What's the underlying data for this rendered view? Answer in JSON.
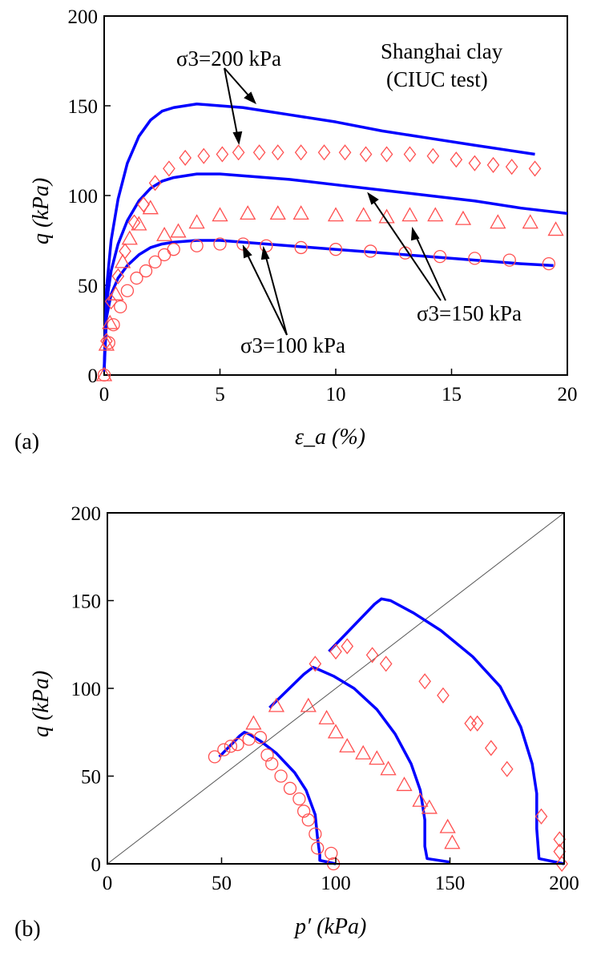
{
  "chart_data": [
    {
      "type": "line",
      "panel_label": "(a)",
      "xlabel": "ε_a (%)",
      "ylabel": "q (kPa)",
      "xlim": [
        0,
        20
      ],
      "ylim": [
        0,
        200
      ],
      "xticks": [
        "0",
        "5",
        "10",
        "15",
        "20"
      ],
      "yticks": [
        "0",
        "50",
        "100",
        "150",
        "200"
      ],
      "grid": false,
      "title_lines": [
        "Shanghai clay",
        "(CIUC test)"
      ],
      "annotations": [
        "σ3=200 kPa",
        "σ3=150 kPa",
        "σ3=100 kPa"
      ],
      "series": [
        {
          "name": "σ3=100 kPa",
          "kind": "simulation",
          "color": "#0000ff",
          "x": [
            0.0,
            0.1,
            0.3,
            0.6,
            1.0,
            1.5,
            2.0,
            2.5,
            3.0,
            4.0,
            5.0,
            6.0,
            8.0,
            10.0,
            12.0,
            14.0,
            16.0,
            18.0,
            19.4
          ],
          "y": [
            2,
            32,
            45,
            54,
            61,
            67,
            71,
            73,
            74,
            75,
            75,
            74,
            72,
            70,
            68,
            66,
            64,
            62,
            61
          ]
        },
        {
          "name": "σ3=150 kPa",
          "kind": "simulation",
          "color": "#0000ff",
          "x": [
            0.0,
            0.1,
            0.3,
            0.6,
            1.0,
            1.5,
            2.0,
            2.5,
            3.0,
            3.5,
            4.0,
            5.0,
            6.0,
            8.0,
            10.0,
            12.0,
            14.0,
            16.0,
            18.0,
            20.0
          ],
          "y": [
            3,
            40,
            58,
            73,
            86,
            97,
            104,
            108,
            110,
            111,
            112,
            112,
            111,
            109,
            106,
            103,
            100,
            97,
            93,
            90
          ]
        },
        {
          "name": "σ3=200 kPa",
          "kind": "simulation",
          "color": "#0000ff",
          "x": [
            0.0,
            0.1,
            0.3,
            0.6,
            1.0,
            1.5,
            2.0,
            2.5,
            3.0,
            3.5,
            4.0,
            5.0,
            6.0,
            7.0,
            8.0,
            10.0,
            12.0,
            14.0,
            16.0,
            18.6
          ],
          "y": [
            4,
            48,
            75,
            98,
            118,
            133,
            142,
            147,
            149,
            150,
            151,
            150,
            149,
            147,
            145,
            141,
            136,
            132,
            128,
            123
          ]
        },
        {
          "name": "σ3=100 kPa",
          "kind": "experiment",
          "marker": "circle",
          "color": "#ff5050",
          "x": [
            0.0,
            0.2,
            0.4,
            0.7,
            1.0,
            1.4,
            1.8,
            2.2,
            2.6,
            3.0,
            4.0,
            5.0,
            6.0,
            7.0,
            8.5,
            10.0,
            11.5,
            13.0,
            14.5,
            16.0,
            17.5,
            19.2
          ],
          "y": [
            0,
            18,
            28,
            38,
            47,
            54,
            58,
            63,
            67,
            70,
            72,
            73,
            73,
            72,
            71,
            70,
            69,
            68,
            66,
            65,
            64,
            62
          ]
        },
        {
          "name": "σ3=150 kPa",
          "kind": "experiment",
          "marker": "triangle",
          "color": "#ff5050",
          "x": [
            0.0,
            0.1,
            0.25,
            0.5,
            0.8,
            1.1,
            1.5,
            2.0,
            2.6,
            3.2,
            4.0,
            5.0,
            6.2,
            7.5,
            8.5,
            10.0,
            11.2,
            12.2,
            13.2,
            14.3,
            15.5,
            17.0,
            18.4,
            19.5
          ],
          "y": [
            0,
            17,
            29,
            45,
            63,
            76,
            84,
            93,
            78,
            80,
            85,
            89,
            90,
            90,
            90,
            89,
            89,
            88,
            89,
            89,
            87,
            85,
            85,
            81
          ]
        },
        {
          "name": "σ3=200 kPa",
          "kind": "experiment",
          "marker": "diamond",
          "color": "#ff5050",
          "x": [
            0.1,
            0.3,
            0.6,
            0.9,
            1.3,
            1.7,
            2.2,
            2.8,
            3.5,
            4.3,
            5.1,
            5.8,
            6.7,
            7.5,
            8.5,
            9.5,
            10.4,
            11.3,
            12.2,
            13.2,
            14.2,
            15.2,
            16.0,
            16.8,
            17.6,
            18.6
          ],
          "y": [
            19,
            41,
            55,
            69,
            85,
            95,
            107,
            115,
            121,
            122,
            123,
            124,
            124,
            124,
            124,
            124,
            124,
            123,
            123,
            123,
            122,
            120,
            118,
            117,
            116,
            115
          ]
        }
      ]
    },
    {
      "type": "line",
      "panel_label": "(b)",
      "xlabel": "p′ (kPa)",
      "ylabel": "q (kPa)",
      "xlim": [
        0,
        200
      ],
      "ylim": [
        0,
        200
      ],
      "xticks": [
        "0",
        "50",
        "100",
        "150",
        "200"
      ],
      "yticks": [
        "0",
        "50",
        "100",
        "150",
        "200"
      ],
      "grid": false,
      "reference_line": {
        "x": [
          0,
          200
        ],
        "y": [
          0,
          200
        ],
        "color": "#555555"
      },
      "series": [
        {
          "name": "σ3=100 kPa",
          "kind": "simulation",
          "color": "#0000ff",
          "x": [
            49,
            58,
            60,
            62,
            67,
            74,
            82,
            87,
            91,
            92,
            93,
            93,
            100
          ],
          "y": [
            61,
            73,
            75,
            74,
            70,
            63,
            52,
            42,
            28,
            15,
            5,
            2,
            0
          ]
        },
        {
          "name": "σ3=150 kPa",
          "kind": "simulation",
          "color": "#0000ff",
          "x": [
            71,
            86,
            90,
            92,
            99,
            108,
            118,
            126,
            133,
            137,
            139,
            139,
            140,
            150
          ],
          "y": [
            89,
            108,
            112,
            111,
            107,
            100,
            88,
            74,
            57,
            42,
            25,
            10,
            3,
            1
          ]
        },
        {
          "name": "σ3=200 kPa",
          "kind": "simulation",
          "color": "#0000ff",
          "x": [
            97,
            117,
            120,
            124,
            134,
            146,
            160,
            172,
            181,
            186,
            188,
            188,
            189,
            200
          ],
          "y": [
            121,
            148,
            151,
            150,
            143,
            133,
            118,
            101,
            78,
            57,
            40,
            20,
            3,
            0
          ]
        },
        {
          "name": "σ3=100 kPa",
          "kind": "experiment",
          "marker": "circle",
          "color": "#ff5050",
          "x": [
            47,
            51,
            54,
            57,
            62,
            67,
            70,
            72,
            76,
            80,
            84,
            86,
            88,
            91,
            92,
            98,
            99
          ],
          "y": [
            61,
            65,
            67,
            68,
            71,
            72,
            62,
            57,
            50,
            43,
            37,
            30,
            25,
            17,
            9,
            6,
            0
          ]
        },
        {
          "name": "σ3=150 kPa",
          "kind": "experiment",
          "marker": "triangle",
          "color": "#ff5050",
          "x": [
            64,
            74,
            88,
            96,
            100,
            105,
            112,
            118,
            123,
            130,
            137,
            141,
            149,
            151
          ],
          "y": [
            80,
            90,
            90,
            83,
            75,
            67,
            63,
            60,
            54,
            45,
            36,
            32,
            21,
            12
          ]
        },
        {
          "name": "σ3=200 kPa",
          "kind": "experiment",
          "marker": "diamond",
          "color": "#ff5050",
          "x": [
            91,
            100,
            105,
            116,
            122,
            139,
            147,
            159,
            162,
            168,
            175,
            190,
            198,
            198,
            199
          ],
          "y": [
            114,
            121,
            124,
            119,
            114,
            104,
            96,
            80,
            80,
            66,
            54,
            27,
            14,
            7,
            0
          ]
        }
      ]
    }
  ]
}
